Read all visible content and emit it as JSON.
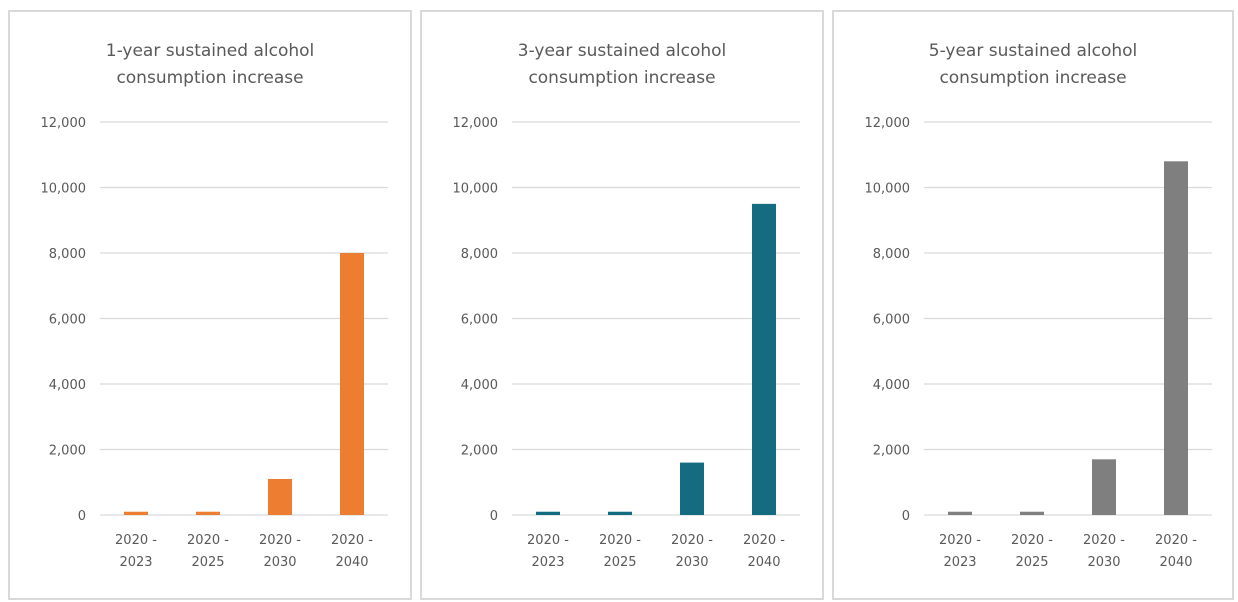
{
  "chart_data": [
    {
      "type": "bar",
      "title": "1-year sustained alcohol\nconsumption increase",
      "categories": [
        [
          "2020 -",
          "2023"
        ],
        [
          "2020 -",
          "2025"
        ],
        [
          "2020 -",
          "2030"
        ],
        [
          "2020 -",
          "2040"
        ]
      ],
      "values": [
        100,
        100,
        1100,
        8000
      ],
      "ylim": [
        0,
        12000
      ],
      "yticks": [
        "0",
        "2,000",
        "4,000",
        "6,000",
        "8,000",
        "10,000",
        "12,000"
      ],
      "color": "#ed7d31",
      "grid": true,
      "legend": "none"
    },
    {
      "type": "bar",
      "title": "3-year sustained alcohol\nconsumption increase",
      "categories": [
        [
          "2020 -",
          "2023"
        ],
        [
          "2020 -",
          "2025"
        ],
        [
          "2020 -",
          "2030"
        ],
        [
          "2020 -",
          "2040"
        ]
      ],
      "values": [
        100,
        100,
        1600,
        9500
      ],
      "ylim": [
        0,
        12000
      ],
      "yticks": [
        "0",
        "2,000",
        "4,000",
        "6,000",
        "8,000",
        "10,000",
        "12,000"
      ],
      "color": "#156b80",
      "grid": true,
      "legend": "none"
    },
    {
      "type": "bar",
      "title": "5-year sustained alcohol\nconsumption increase",
      "categories": [
        [
          "2020 -",
          "2023"
        ],
        [
          "2020 -",
          "2025"
        ],
        [
          "2020 -",
          "2030"
        ],
        [
          "2020 -",
          "2040"
        ]
      ],
      "values": [
        100,
        100,
        1700,
        10800
      ],
      "ylim": [
        0,
        12000
      ],
      "yticks": [
        "0",
        "2,000",
        "4,000",
        "6,000",
        "8,000",
        "10,000",
        "12,000"
      ],
      "color": "#7f7f7f",
      "grid": true,
      "legend": "none"
    }
  ]
}
